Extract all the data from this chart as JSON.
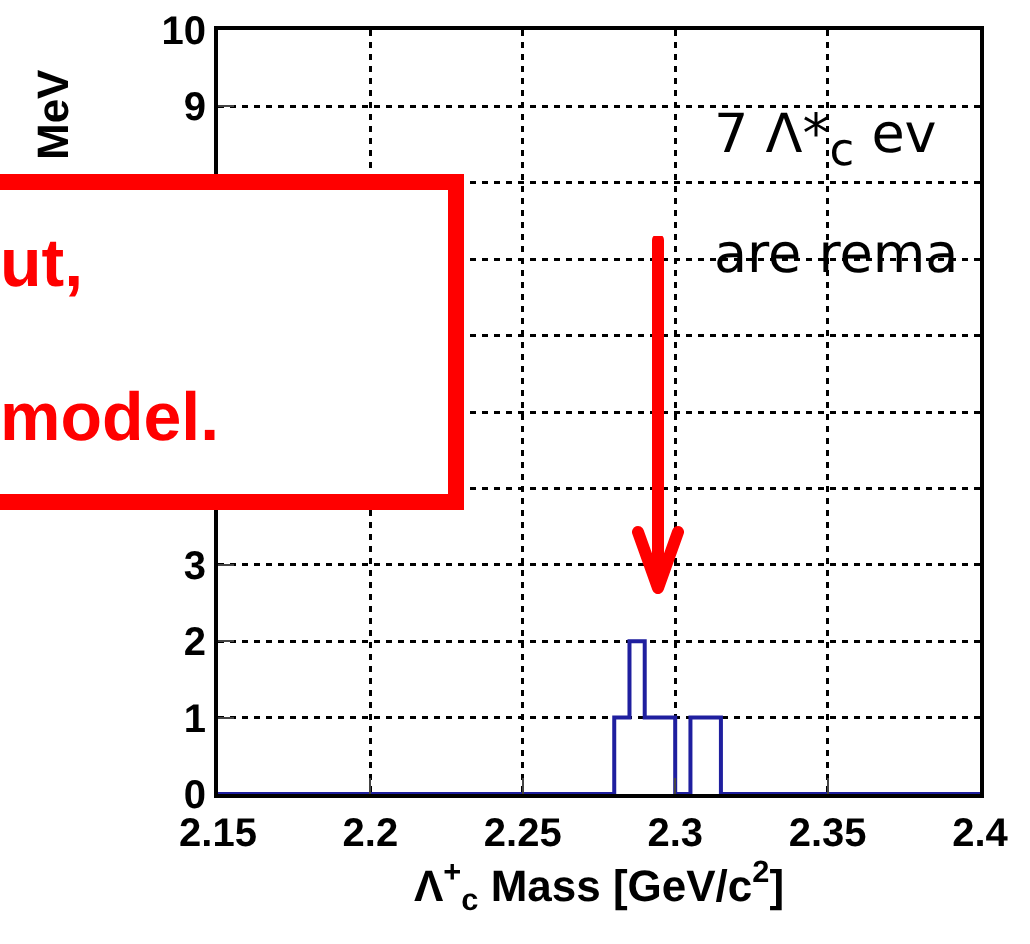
{
  "chart_data": {
    "type": "histogram",
    "ylabel": "MeV",
    "xlabel": "Λ$^{+}$$_{c}$ Mass [GeV/c$^{2}$]",
    "bins": [
      2.15,
      2.28,
      2.285,
      2.29,
      2.295,
      2.3,
      2.305,
      2.31,
      2.315,
      2.4
    ],
    "values": [
      0,
      1,
      2,
      1,
      1,
      0,
      1,
      1,
      0
    ],
    "color": "#1f1f9f",
    "xlim": [
      2.15,
      2.4
    ],
    "xticks": [
      2.15,
      2.2,
      2.25,
      2.3,
      2.35,
      2.4
    ],
    "ylim": [
      0,
      10
    ],
    "yticks": [
      0,
      1,
      2,
      3,
      {
        "value": 4,
        "label": null
      },
      {
        "value": 5,
        "label": null
      },
      {
        "value": 6,
        "label": null
      },
      {
        "value": 7,
        "label": null
      },
      {
        "value": 8,
        "label": null
      },
      9,
      10
    ],
    "grid": true,
    "annotations": [
      "7 Λ*$_{c}$ ev",
      "are rema",
      "ut,",
      "model."
    ]
  }
}
